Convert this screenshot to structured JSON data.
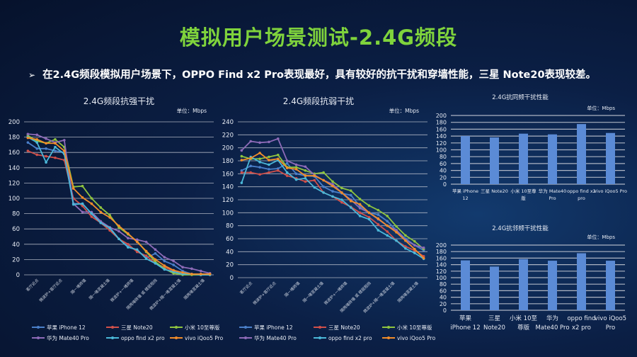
{
  "slide": {
    "title": "模拟用户场景测试-2.4G频段",
    "bullet_marker": "➢",
    "bullet": "在2.4G频段模拟用户场景下，OPPO Find x2 Pro表现最好，具有较好的抗干扰和穿墙性能，三星 Note20表现较差。"
  },
  "colors": {
    "title": "#7fd33c",
    "bar": "#5b8bd6",
    "grid": "#c8ccd6"
  },
  "chart_data": [
    {
      "type": "line",
      "title": "2.4G频段抗强干扰",
      "unit": "单位：Mbps",
      "ylim": [
        0,
        200
      ],
      "yticks": [
        0,
        20,
        40,
        60,
        80,
        100,
        120,
        140,
        160,
        180,
        200
      ],
      "grid": true,
      "legend": "bottom",
      "x_labels": [
        "客厅近点",
        "微波炉+客厅近点",
        "隔一堵砖墙",
        "隔一堵混凝土墙",
        "微波炉+一堵砖墙",
        "隔两堵砖墙 或 楼层阻挡",
        "微波炉+隔一堵混凝土墙",
        "隔两堵混凝土墙"
      ],
      "series": [
        {
          "name": "苹果 iPhone 12",
          "color": "#4a7fc9",
          "values": [
            173,
            165,
            165,
            162,
            160,
            93,
            93,
            80,
            68,
            62,
            47,
            37,
            32,
            22,
            28,
            18,
            13,
            5,
            1,
            1,
            1
          ]
        },
        {
          "name": "三星 Note20",
          "color": "#d0504a",
          "values": [
            162,
            157,
            155,
            153,
            150,
            100,
            90,
            76,
            68,
            58,
            47,
            40,
            30,
            25,
            15,
            10,
            5,
            1,
            1,
            1,
            0
          ]
        },
        {
          "name": "小米 10至尊版",
          "color": "#8fc43f",
          "values": [
            182,
            175,
            172,
            177,
            167,
            115,
            116,
            100,
            88,
            78,
            62,
            53,
            44,
            30,
            17,
            8,
            2,
            0,
            0,
            0,
            0
          ]
        },
        {
          "name": "华为 Mate40 Pro",
          "color": "#8e6bb8",
          "values": [
            184,
            183,
            178,
            173,
            176,
            93,
            82,
            82,
            70,
            62,
            57,
            48,
            46,
            43,
            33,
            23,
            18,
            10,
            8,
            5,
            2
          ]
        },
        {
          "name": "oppo find x2 pro",
          "color": "#4bb8d8",
          "values": [
            180,
            173,
            147,
            167,
            158,
            92,
            93,
            80,
            68,
            61,
            47,
            36,
            33,
            21,
            15,
            7,
            4,
            1,
            1,
            0,
            0
          ]
        },
        {
          "name": "vivo iQoo5 Pro",
          "color": "#f28d2a",
          "values": [
            179,
            177,
            172,
            172,
            162,
            113,
            101,
            93,
            82,
            75,
            64,
            54,
            43,
            31,
            20,
            12,
            6,
            3,
            1,
            1,
            1
          ]
        }
      ]
    },
    {
      "type": "line",
      "title": "2.4G频段抗弱干扰",
      "unit": "单位：Mbps",
      "ylim": [
        0,
        240
      ],
      "yticks": [
        0,
        20,
        40,
        60,
        80,
        100,
        120,
        140,
        160,
        180,
        200,
        220,
        240
      ],
      "grid": true,
      "legend": "bottom",
      "x_labels": [
        "客厅近点",
        "微波炉+客厅近点",
        "隔一堵砖墙",
        "隔一堵混凝土墙",
        "微波炉+一堵砖墙",
        "隔两堵砖墙 或 楼层阻挡",
        "微波炉+隔一堵混凝土墙",
        "隔两堵混凝土墙"
      ],
      "series": [
        {
          "name": "苹果 iPhone 12",
          "color": "#4a7fc9",
          "values": [
            165,
            172,
            170,
            167,
            168,
            176,
            160,
            157,
            156,
            140,
            133,
            130,
            127,
            110,
            100,
            97,
            87,
            73,
            60,
            50,
            42
          ]
        },
        {
          "name": "三星 Note20",
          "color": "#d0504a",
          "values": [
            162,
            162,
            159,
            162,
            165,
            157,
            153,
            148,
            150,
            131,
            125,
            116,
            109,
            100,
            93,
            82,
            71,
            57,
            48,
            42,
            33
          ]
        },
        {
          "name": "小米 10至尊版",
          "color": "#8fc43f",
          "values": [
            187,
            183,
            183,
            186,
            189,
            170,
            170,
            165,
            160,
            162,
            148,
            138,
            134,
            121,
            111,
            104,
            95,
            79,
            65,
            56,
            44
          ]
        },
        {
          "name": "华为 Mate40 Pro",
          "color": "#8e6bb8",
          "values": [
            196,
            210,
            208,
            209,
            214,
            180,
            174,
            171,
            158,
            150,
            144,
            131,
            120,
            107,
            100,
            90,
            80,
            73,
            58,
            50,
            46
          ]
        },
        {
          "name": "oppo find x2 pro",
          "color": "#4bb8d8",
          "values": [
            146,
            186,
            178,
            174,
            181,
            162,
            151,
            153,
            139,
            131,
            125,
            120,
            108,
            95,
            90,
            73,
            65,
            57,
            45,
            38,
            29
          ]
        },
        {
          "name": "vivo iQoo5 Pro",
          "color": "#f28d2a",
          "values": [
            181,
            184,
            192,
            181,
            183,
            169,
            167,
            157,
            157,
            150,
            141,
            131,
            118,
            113,
            100,
            91,
            80,
            70,
            57,
            44,
            30
          ]
        }
      ]
    },
    {
      "type": "bar",
      "title": "2.4G抗同频干扰性能",
      "unit": "单位：Mbps",
      "ylim": [
        0,
        200
      ],
      "yticks": [
        0,
        20,
        40,
        60,
        80,
        100,
        120,
        140,
        160,
        180,
        200
      ],
      "grid": true,
      "categories": [
        [
          "苹果 iPhone",
          "12"
        ],
        [
          "三星 Note20",
          ""
        ],
        [
          "小米 10至尊",
          "版"
        ],
        [
          "华为 Mate40",
          "Pro"
        ],
        [
          "oppo find x2",
          "pro"
        ],
        [
          "vivo iQoo5 Pro",
          ""
        ]
      ],
      "values": [
        140,
        136,
        147,
        145,
        175,
        149
      ]
    },
    {
      "type": "bar",
      "title": "2.4G抗邻频干扰性能",
      "unit": "单位：Mbps",
      "ylim": [
        0,
        200
      ],
      "yticks": [
        0,
        20,
        40,
        60,
        80,
        100,
        120,
        140,
        160,
        180,
        200
      ],
      "grid": true,
      "categories": [
        [
          "苹果",
          "iPhone 12"
        ],
        [
          "三星",
          "Note20"
        ],
        [
          "小米 10至",
          "尊版"
        ],
        [
          "华为",
          "Mate40 Pro"
        ],
        [
          "oppo find",
          "x2 pro"
        ],
        [
          "vivo iQoo5",
          "Pro"
        ]
      ],
      "values": [
        153,
        134,
        157,
        152,
        175,
        152
      ]
    }
  ]
}
